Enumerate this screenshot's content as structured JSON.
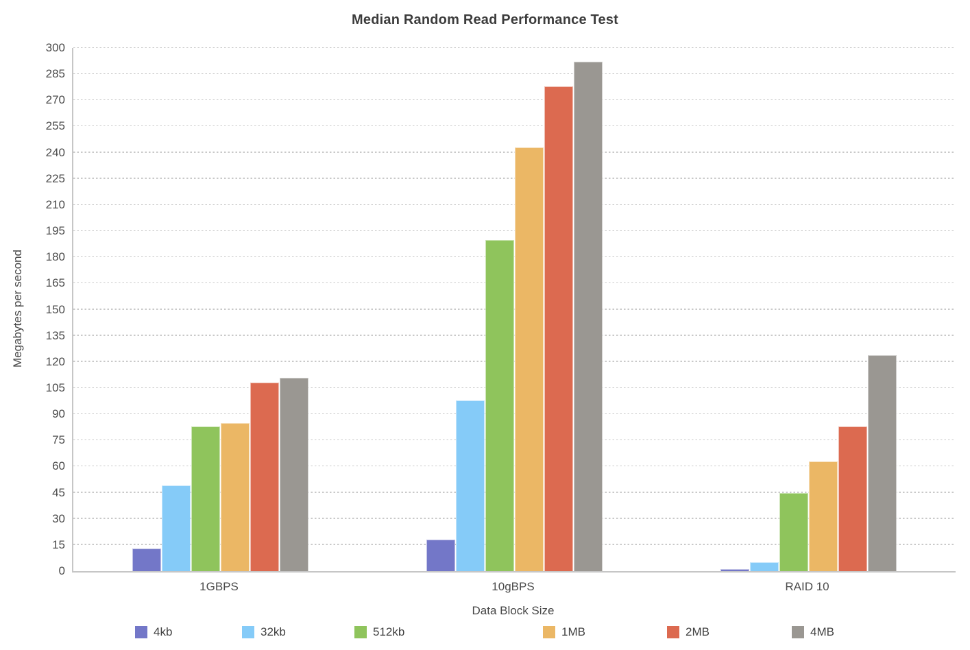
{
  "chart_data": {
    "type": "bar",
    "title": "Median Random Read Performance Test",
    "xlabel": "Data Block Size",
    "ylabel": "Megabytes per second",
    "categories": [
      "1GBPS",
      "10gBPS",
      "RAID 10"
    ],
    "series": [
      {
        "name": "4kb",
        "color": "#7377C8",
        "values": [
          13,
          18,
          1
        ]
      },
      {
        "name": "32kb",
        "color": "#85CBF8",
        "values": [
          49,
          98,
          5
        ]
      },
      {
        "name": "512kb",
        "color": "#8FC45C",
        "values": [
          83,
          190,
          45
        ]
      },
      {
        "name": "1MB",
        "color": "#EBB765",
        "values": [
          85,
          243,
          63
        ]
      },
      {
        "name": "2MB",
        "color": "#DC6A50",
        "values": [
          108,
          278,
          83
        ]
      },
      {
        "name": "4MB",
        "color": "#9A9792",
        "values": [
          111,
          292,
          124
        ]
      }
    ],
    "ylim": [
      0,
      300
    ],
    "ytick_step": 15,
    "grid": "horizontal-dashed",
    "legend_position": "bottom",
    "colors": {
      "title_text": "#3c3c3c",
      "axis_text": "#4b4b4b",
      "axis_line": "#c6c6c6",
      "gridline": "#c9c9c9",
      "background": "#ffffff"
    }
  }
}
